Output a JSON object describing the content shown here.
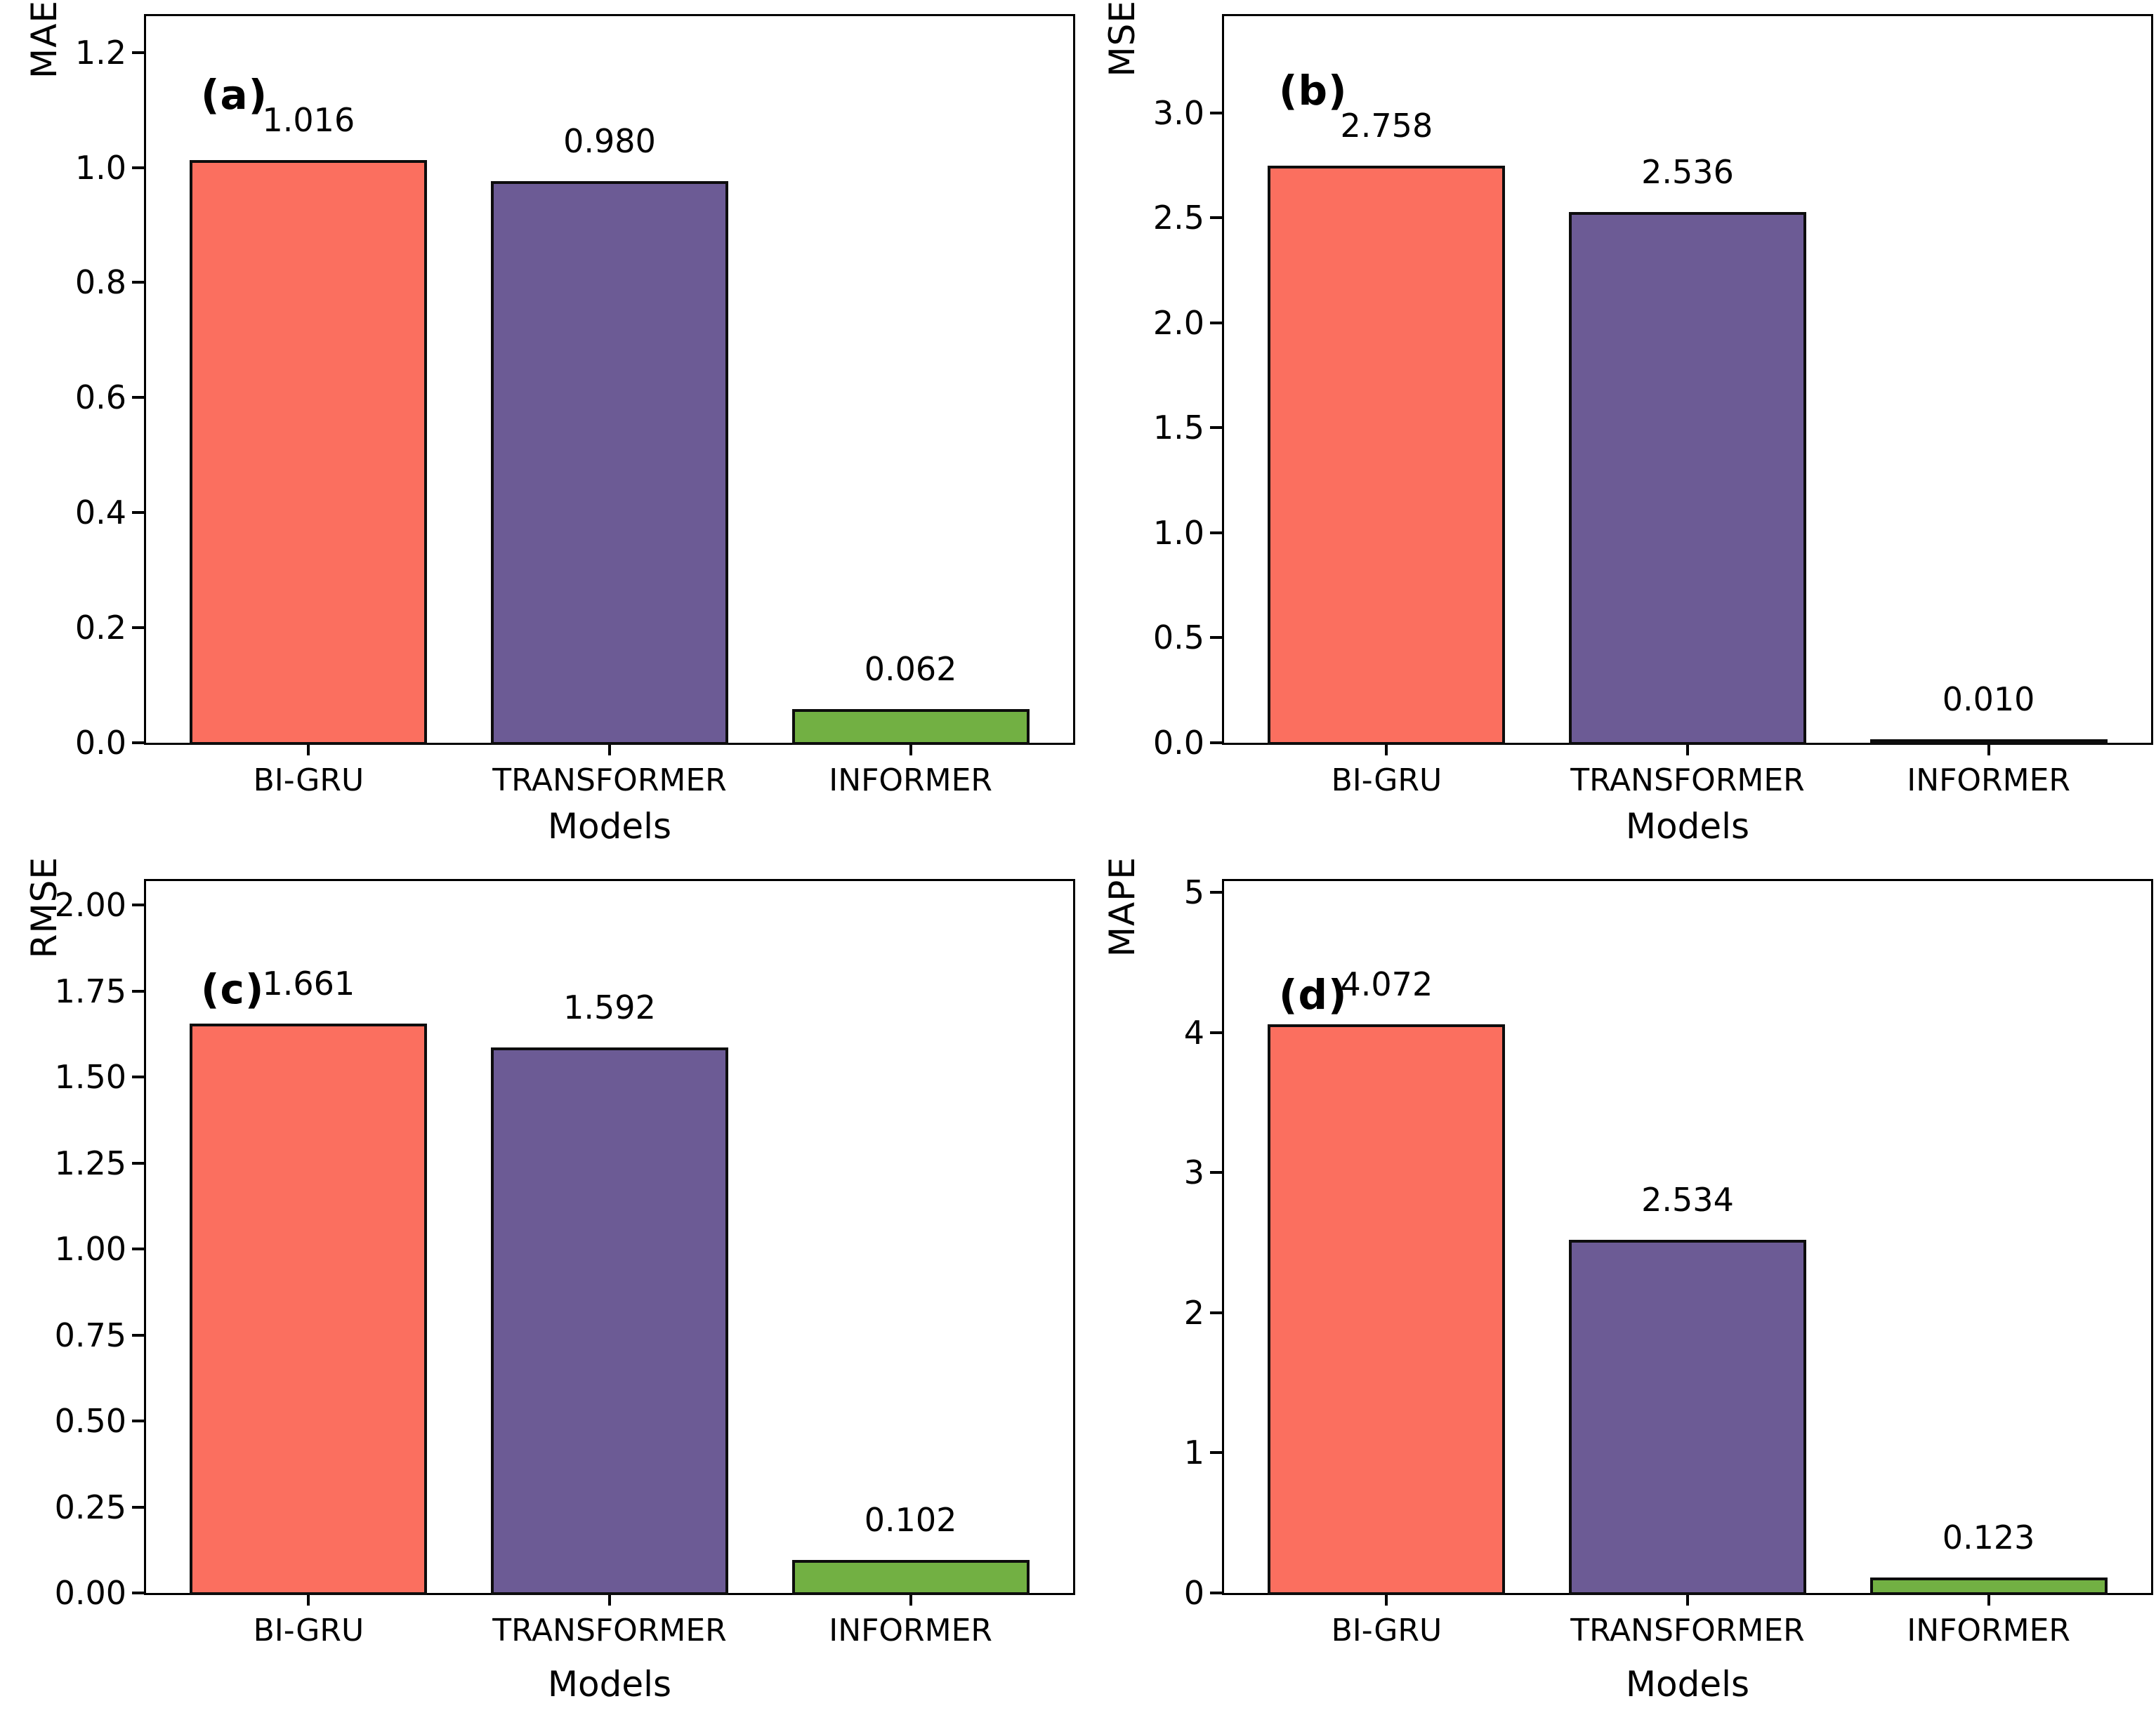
{
  "figure_title": "",
  "palette": {
    "bi_gru_bar": "#FB6F5F",
    "transformer_bar": "#6C5B95",
    "informer_bar": "#72B043",
    "bar_edge": "#0d0d0d",
    "axis": "#000000",
    "background": "#ffffff"
  },
  "chart_data": [
    {
      "type": "bar",
      "panel_label": "(a)",
      "ylabel": "MAE",
      "xlabel": "Models",
      "categories": [
        "BI-GRU",
        "TRANSFORMER",
        "INFORMER"
      ],
      "values": [
        1.016,
        0.98,
        0.062
      ],
      "value_labels": [
        "1.016",
        "0.980",
        "0.062"
      ],
      "bar_colors": [
        "#FB6F5F",
        "#6C5B95",
        "#72B043"
      ],
      "ytick_values": [
        0.0,
        0.2,
        0.4,
        0.6,
        0.8,
        1.0,
        1.2
      ],
      "ytick_labels": [
        "0.0",
        "0.2",
        "0.4",
        "0.6",
        "0.8",
        "1.0",
        "1.2"
      ],
      "ylim": [
        0,
        1.263
      ],
      "grid": false,
      "legend": null
    },
    {
      "type": "bar",
      "panel_label": "(b)",
      "ylabel": "MSE",
      "xlabel": "Models",
      "categories": [
        "BI-GRU",
        "TRANSFORMER",
        "INFORMER"
      ],
      "values": [
        2.758,
        2.536,
        0.01
      ],
      "value_labels": [
        "2.758",
        "2.536",
        "0.010"
      ],
      "bar_colors": [
        "#FB6F5F",
        "#6C5B95",
        "#72B043"
      ],
      "ytick_values": [
        0.0,
        0.5,
        1.0,
        1.5,
        2.0,
        2.5,
        3.0
      ],
      "ytick_labels": [
        "0.0",
        "0.5",
        "1.0",
        "1.5",
        "2.0",
        "2.5",
        "3.0"
      ],
      "ylim": [
        0,
        3.46
      ],
      "grid": false,
      "legend": null
    },
    {
      "type": "bar",
      "panel_label": "(c)",
      "ylabel": "RMSE",
      "xlabel": "Models",
      "categories": [
        "BI-GRU",
        "TRANSFORMER",
        "INFORMER"
      ],
      "values": [
        1.661,
        1.592,
        0.102
      ],
      "value_labels": [
        "1.661",
        "1.592",
        "0.102"
      ],
      "bar_colors": [
        "#FB6F5F",
        "#6C5B95",
        "#72B043"
      ],
      "ytick_values": [
        0.0,
        0.25,
        0.5,
        0.75,
        1.0,
        1.25,
        1.5,
        1.75,
        2.0
      ],
      "ytick_labels": [
        "0.00",
        "0.25",
        "0.50",
        "0.75",
        "1.00",
        "1.25",
        "1.50",
        "1.75",
        "2.00"
      ],
      "ylim": [
        0,
        2.07
      ],
      "grid": false,
      "legend": null
    },
    {
      "type": "bar",
      "panel_label": "(d)",
      "ylabel": "MAPE",
      "xlabel": "Models",
      "categories": [
        "BI-GRU",
        "TRANSFORMER",
        "INFORMER"
      ],
      "values": [
        4.072,
        2.534,
        0.123
      ],
      "value_labels": [
        "4.072",
        "2.534",
        "0.123"
      ],
      "bar_colors": [
        "#FB6F5F",
        "#6C5B95",
        "#72B043"
      ],
      "ytick_values": [
        0,
        1,
        2,
        3,
        4,
        5
      ],
      "ytick_labels": [
        "0",
        "1",
        "2",
        "3",
        "4",
        "5"
      ],
      "ylim": [
        0,
        5.08
      ],
      "grid": false,
      "legend": null
    }
  ]
}
